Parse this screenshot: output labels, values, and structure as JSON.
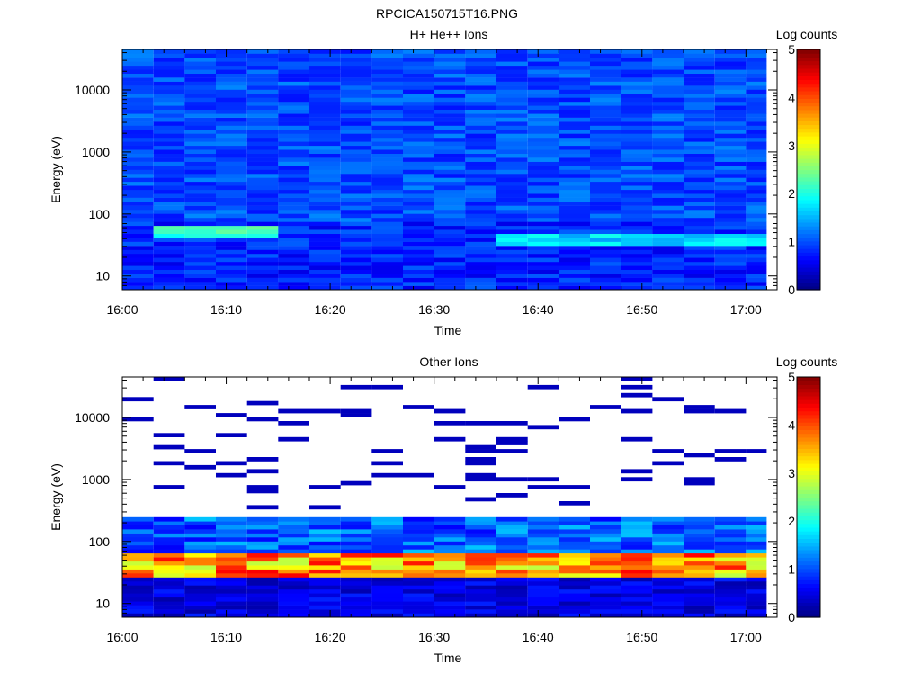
{
  "page_title": "RPCICA150715T16.PNG",
  "chart_data": [
    {
      "type": "heatmap",
      "title": "H+ He++ Ions",
      "xlabel": "Time",
      "ylabel": "Energy (eV)",
      "yscale": "log",
      "ylim": [
        6,
        45000
      ],
      "xlim": [
        "16:00",
        "17:03"
      ],
      "x_ticks": [
        "16:00",
        "16:10",
        "16:20",
        "16:30",
        "16:40",
        "16:50",
        "17:00"
      ],
      "y_ticks": [
        "10",
        "100",
        "1000",
        "10000"
      ],
      "colorbar": {
        "label": "Log counts",
        "range": [
          0,
          5
        ],
        "ticks": [
          "0",
          "1",
          "2",
          "3",
          "4",
          "5"
        ]
      },
      "time_bins": [
        "16:00",
        "16:03",
        "16:06",
        "16:09",
        "16:12",
        "16:15",
        "16:18",
        "16:21",
        "16:24",
        "16:27",
        "16:30",
        "16:33",
        "16:36",
        "16:39",
        "16:42",
        "16:45",
        "16:48",
        "16:51",
        "16:54",
        "16:57",
        "17:00"
      ],
      "features": [
        {
          "energy_range_eV": [
            6,
            80
          ],
          "value_log_counts": 0.8,
          "description": "low energy background"
        },
        {
          "energy_range_eV": [
            40,
            60
          ],
          "time_range": [
            "16:03",
            "16:15"
          ],
          "value_log_counts": 2.2
        },
        {
          "energy_range_eV": [
            35,
            45
          ],
          "time_range": [
            "16:36",
            "17:03"
          ],
          "value_log_counts": 1.7
        },
        {
          "energy_range_eV": [
            80,
            45000
          ],
          "value_log_counts": 1.0,
          "description": "high energy background"
        }
      ]
    },
    {
      "type": "heatmap",
      "title": "Other Ions",
      "xlabel": "Time",
      "ylabel": "Energy (eV)",
      "yscale": "log",
      "ylim": [
        6,
        45000
      ],
      "xlim": [
        "16:00",
        "17:03"
      ],
      "x_ticks": [
        "16:00",
        "16:10",
        "16:20",
        "16:30",
        "16:40",
        "16:50",
        "17:00"
      ],
      "y_ticks": [
        "10",
        "100",
        "1000",
        "10000"
      ],
      "colorbar": {
        "label": "Log counts",
        "range": [
          0,
          5
        ],
        "ticks": [
          "0",
          "1",
          "2",
          "3",
          "4",
          "5"
        ]
      },
      "time_bins": [
        "16:00",
        "16:03",
        "16:06",
        "16:09",
        "16:12",
        "16:15",
        "16:18",
        "16:21",
        "16:24",
        "16:27",
        "16:30",
        "16:33",
        "16:36",
        "16:39",
        "16:42",
        "16:45",
        "16:48",
        "16:51",
        "16:54",
        "16:57",
        "17:00"
      ],
      "features": [
        {
          "energy_range_eV": [
            6,
            25
          ],
          "value_log_counts": 0.5
        },
        {
          "energy_range_eV": [
            25,
            65
          ],
          "value_log_counts": 3.8,
          "description": "peak band"
        },
        {
          "energy_range_eV": [
            65,
            230
          ],
          "value_log_counts": 1.0
        },
        {
          "energy_range_eV": [
            230,
            45000
          ],
          "value_log_counts": 0.3,
          "description": "sparse counts"
        }
      ]
    }
  ]
}
